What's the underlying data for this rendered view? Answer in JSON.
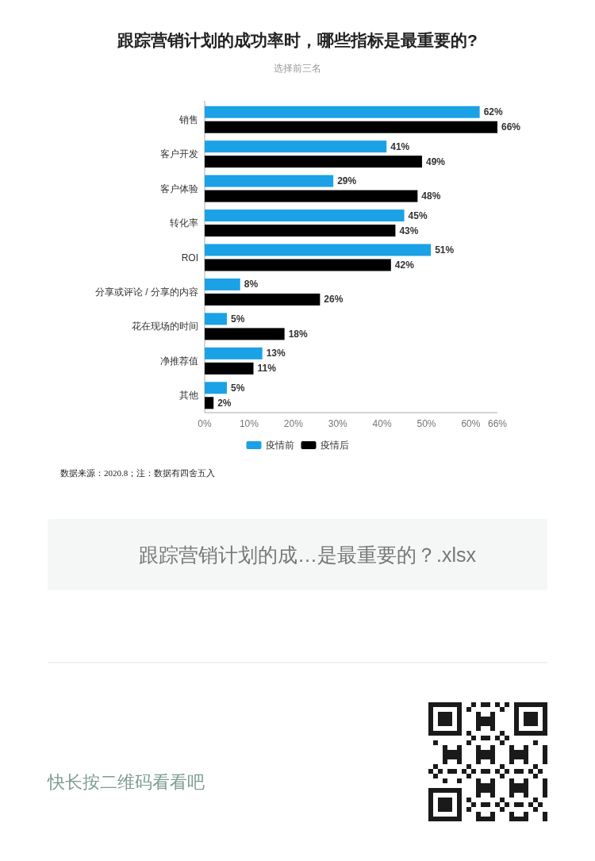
{
  "chart_data": {
    "type": "bar",
    "orientation": "horizontal",
    "title": "跟踪营销计划的成功率时，哪些指标是最重要的?",
    "subtitle": "选择前三名",
    "categories": [
      "销售",
      "客户开发",
      "客户体验",
      "转化率",
      "ROI",
      "分享或评论 / 分享的内容",
      "花在现场的时间",
      "净推荐值",
      "其他"
    ],
    "series": [
      {
        "name": "疫情前",
        "color": "#1ba1e6",
        "values": [
          62,
          41,
          29,
          45,
          51,
          8,
          5,
          13,
          5
        ],
        "value_labels": [
          "62%",
          "41%",
          "29%",
          "45%",
          "51%",
          "8%",
          "5%",
          "13%",
          "5%"
        ]
      },
      {
        "name": "疫情后",
        "color": "#000000",
        "values": [
          66,
          49,
          48,
          43,
          42,
          26,
          18,
          11,
          2
        ],
        "value_labels": [
          "66%",
          "49%",
          "48%",
          "43%",
          "42%",
          "26%",
          "18%",
          "11%",
          "2%"
        ]
      }
    ],
    "xlim": [
      0,
      66
    ],
    "xticks": [
      {
        "value": 0,
        "label": "0%"
      },
      {
        "value": 10,
        "label": "10%"
      },
      {
        "value": 20,
        "label": "20%"
      },
      {
        "value": 30,
        "label": "30%"
      },
      {
        "value": 40,
        "label": "40%"
      },
      {
        "value": 50,
        "label": "50%"
      },
      {
        "value": 60,
        "label": "60%"
      },
      {
        "value": 66,
        "label": "66%"
      }
    ],
    "legend": "bottom",
    "annotations": [
      "数据来源：2020.8；注：数据有四舍五入",
      "跟踪营销计划的成…是最重要的？.xlsx",
      "快长按二维码看看吧"
    ]
  }
}
